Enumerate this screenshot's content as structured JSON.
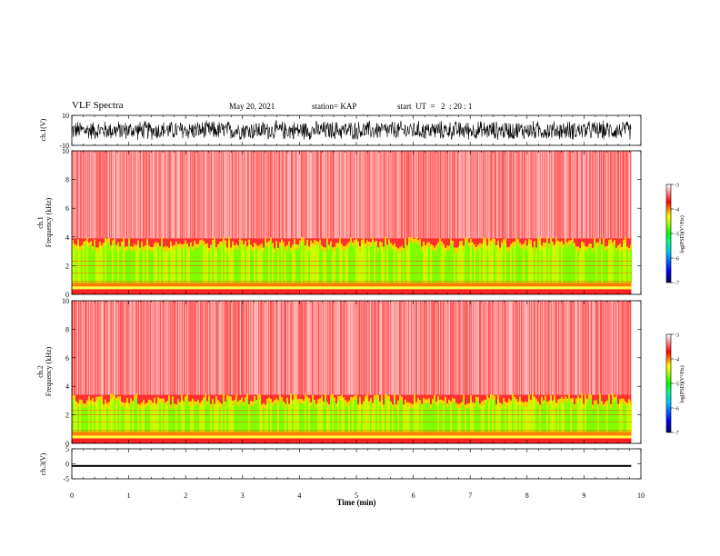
{
  "header": {
    "title": "VLF Spectra",
    "date": "May 20, 2021",
    "station": "station= KAP",
    "start": "start  UT  =   2  : 20 : 1"
  },
  "colors": {
    "scale": [
      "#000080",
      "#0000ff",
      "#00a0ff",
      "#00e0a0",
      "#00ff00",
      "#a0ff00",
      "#ffff00",
      "#ffa000",
      "#ff0000",
      "#ff8080",
      "#ffffff"
    ],
    "waveform": "#000000"
  },
  "chart_data": [
    {
      "type": "line",
      "name": "ch1-waveform",
      "ylabel": "ch.1(V)",
      "ylim": [
        -10,
        10
      ],
      "yticks": [
        "10",
        "-10"
      ],
      "x_range": [
        0,
        9.83
      ],
      "amplitude_approx": 7
    },
    {
      "type": "heatmap",
      "name": "ch1-spectrogram",
      "ylabel": "ch.1\nFrequency (kHz)",
      "ylabel_line1": "ch.1",
      "ylabel_line2": "Frequency (kHz)",
      "ylim": [
        0,
        10
      ],
      "yticks": [
        "0",
        "2",
        "4",
        "6",
        "8",
        "10"
      ],
      "x_range": [
        0,
        9.83
      ],
      "green_band_top_khz": 3.3,
      "colorbar": {
        "label": "log(PSD)(V²/Hz)",
        "range": [
          -7,
          -3
        ],
        "ticks": [
          "-3",
          "-4",
          "-5",
          "-6",
          "-7"
        ]
      }
    },
    {
      "type": "heatmap",
      "name": "ch2-spectrogram",
      "ylabel_line1": "ch.2",
      "ylabel_line2": "Frequency (kHz)",
      "ylim": [
        0,
        10
      ],
      "yticks": [
        "0",
        "2",
        "4",
        "6",
        "8",
        "10"
      ],
      "x_range": [
        0,
        9.83
      ],
      "green_band_top_khz": 2.8,
      "colorbar": {
        "label": "log(PSD)(V²/Hz)",
        "range": [
          -7,
          -3
        ],
        "ticks": [
          "-3",
          "-4",
          "-5",
          "-6",
          "-7"
        ]
      }
    },
    {
      "type": "line",
      "name": "ch3-waveform",
      "ylabel": "ch.3(V)",
      "ylim": [
        -5,
        5
      ],
      "yticks": [
        "5",
        "0",
        "-5"
      ],
      "x_range": [
        0,
        9.83
      ],
      "level_approx": [
        -1.0,
        -0.4
      ]
    }
  ],
  "xaxis": {
    "label": "Time (min)",
    "range": [
      0,
      10
    ],
    "ticks": [
      "0",
      "1",
      "2",
      "3",
      "4",
      "5",
      "6",
      "7",
      "8",
      "9",
      "10"
    ]
  }
}
